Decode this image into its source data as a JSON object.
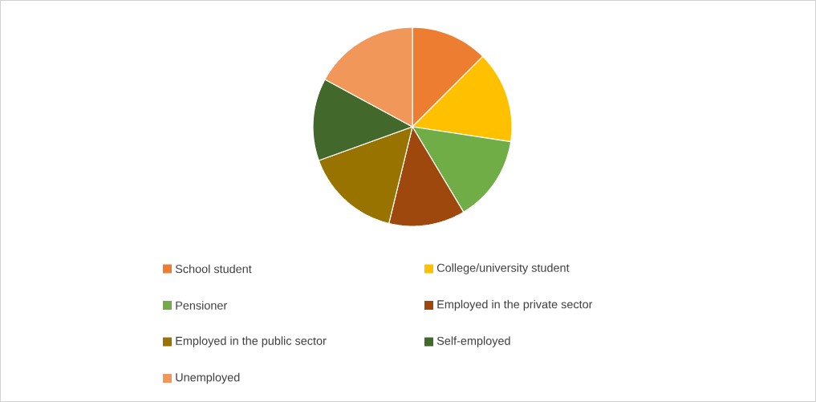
{
  "chart_data": {
    "type": "pie",
    "categories": [
      "School student",
      "College/university student",
      "Pensioner",
      "Employed in the private sector",
      "Employed in the public sector",
      "Self-employed",
      "Unemployed"
    ],
    "values": [
      12.5,
      14.9,
      14.0,
      12.4,
      15.7,
      13.4,
      17.1
    ],
    "colors": [
      "#ed7d31",
      "#ffc000",
      "#70ad47",
      "#9e480e",
      "#997300",
      "#43682b",
      "#f1975a"
    ],
    "legend": "bottom"
  }
}
